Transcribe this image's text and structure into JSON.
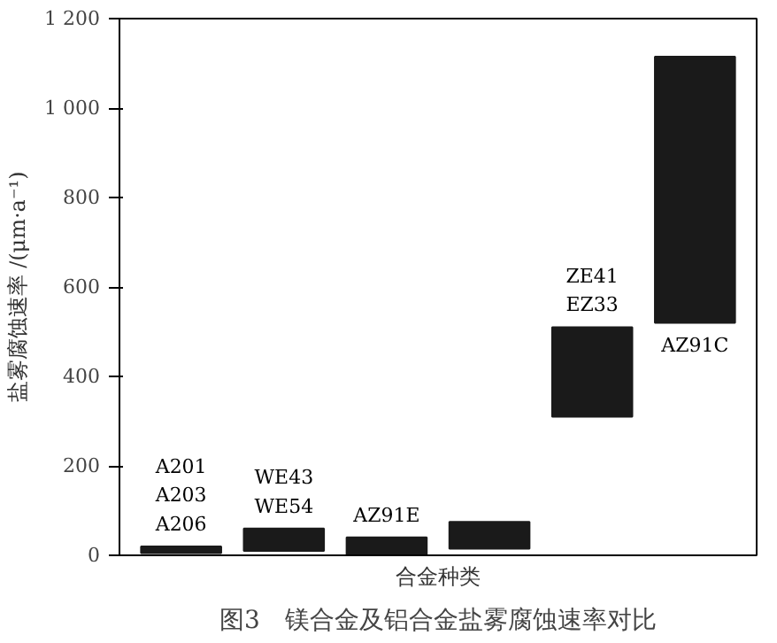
{
  "chart_data": {
    "type": "bar",
    "title": "图3　镁合金及铝合金盐雾腐蚀速率对比",
    "xlabel": "合金种类",
    "ylabel": "盐雾腐蚀速率 /(μm·a⁻¹)",
    "categories": [
      "A201\nA203\nA206",
      "WE43\nWE54",
      "AZ91E",
      null,
      "ZE41\nEZ33",
      "AZ91C"
    ],
    "base": [
      5,
      10,
      0,
      15,
      310,
      520
    ],
    "values": [
      15,
      50,
      40,
      60,
      200,
      595
    ],
    "color": "#1a1a1a",
    "ylim": [
      0,
      1200
    ],
    "yticks": [
      0,
      200,
      400,
      600,
      800,
      {
        "value": 1000,
        "label": "1 000"
      },
      {
        "value": 1200,
        "label": "1 200"
      }
    ],
    "grid": false
  }
}
